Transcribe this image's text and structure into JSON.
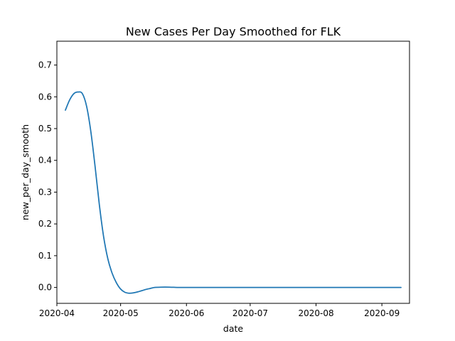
{
  "chart_data": {
    "type": "line",
    "title": "New Cases Per Day Smoothed for FLK",
    "xlabel": "date",
    "ylabel": "new_per_day_smooth",
    "x_axis_type": "date",
    "xlim": [
      "2020-04-01",
      "2020-09-14"
    ],
    "ylim": [
      -0.05,
      0.775
    ],
    "grid": false,
    "xticks": [
      "2020-04",
      "2020-05",
      "2020-06",
      "2020-07",
      "2020-08",
      "2020-09"
    ],
    "yticks": [
      "0.0",
      "0.1",
      "0.2",
      "0.3",
      "0.4",
      "0.5",
      "0.6",
      "0.7"
    ],
    "colors": {
      "series": "#1f77b4"
    },
    "series": [
      {
        "x": [
          "2020-04-05",
          "2020-04-07",
          "2020-04-09",
          "2020-04-11",
          "2020-04-13",
          "2020-04-15",
          "2020-04-17",
          "2020-04-19",
          "2020-04-21",
          "2020-04-23",
          "2020-04-25",
          "2020-04-27",
          "2020-04-29",
          "2020-05-01",
          "2020-05-03",
          "2020-05-05",
          "2020-05-07",
          "2020-05-09",
          "2020-05-11",
          "2020-05-13",
          "2020-05-15",
          "2020-05-17",
          "2020-05-20",
          "2020-05-24",
          "2020-05-28",
          "2020-06-01",
          "2020-06-05",
          "2020-06-12",
          "2020-06-20",
          "2020-07-01",
          "2020-07-15",
          "2020-08-01",
          "2020-08-20",
          "2020-09-10"
        ],
        "values": [
          0.558,
          0.59,
          0.61,
          0.615,
          0.61,
          0.57,
          0.49,
          0.38,
          0.26,
          0.16,
          0.09,
          0.045,
          0.015,
          -0.005,
          -0.015,
          -0.018,
          -0.017,
          -0.014,
          -0.01,
          -0.006,
          -0.003,
          0.0,
          0.001,
          0.001,
          0.0,
          0.0,
          0.0,
          0.0,
          0.0,
          0.0,
          0.0,
          0.0,
          0.0,
          0.0
        ]
      }
    ]
  }
}
